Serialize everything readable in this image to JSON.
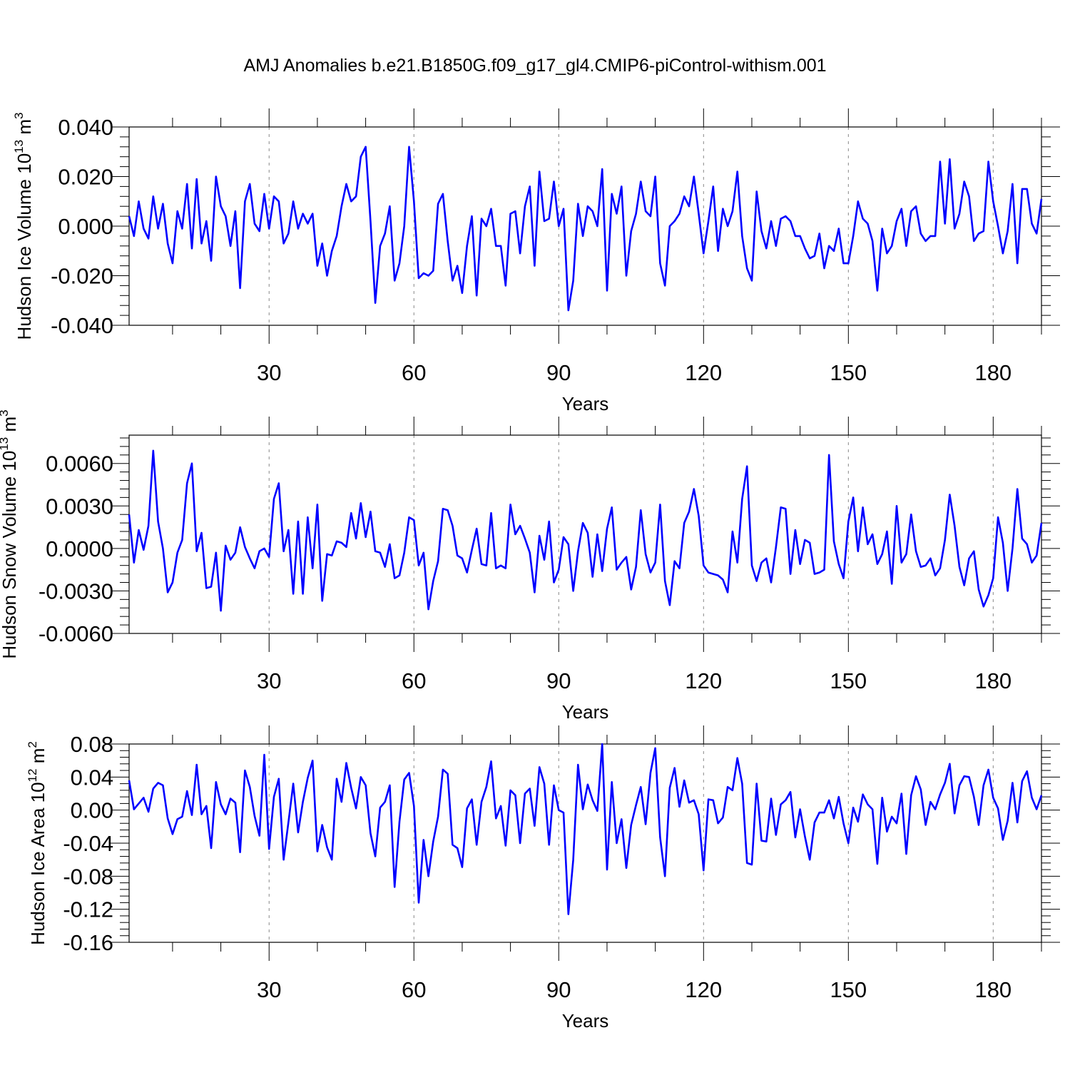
{
  "title": "AMJ Anomalies b.e21.B1850G.f09_g17_gl4.CMIP6-piControl-withism.001",
  "colors": {
    "series": "#0000ff",
    "axis": "#000000",
    "grid": "#888888"
  },
  "chart_data": [
    {
      "type": "line",
      "ylabel": {
        "main": "Hudson Ice Volume 10",
        "exp": "13",
        "unit": " m",
        "unit_exp": "3"
      },
      "xlabel": "Years",
      "xlim": [
        1,
        190
      ],
      "ylim": [
        -0.04,
        0.04
      ],
      "xticks": [
        30,
        60,
        90,
        120,
        150,
        180
      ],
      "xtick_labels": [
        "30",
        "60",
        "90",
        "120",
        "150",
        "180"
      ],
      "yticks": [
        -0.04,
        -0.02,
        0.0,
        0.02,
        0.04
      ],
      "ytick_labels": [
        "-0.040",
        "-0.020",
        "0.000",
        "0.020",
        "0.040"
      ],
      "x_start": 1,
      "series": [
        {
          "name": "Hudson Ice Volume",
          "values": [
            0.004,
            -0.004,
            0.01,
            -0.001,
            -0.005,
            0.012,
            -0.001,
            0.009,
            -0.007,
            -0.015,
            0.006,
            -0.001,
            0.017,
            -0.009,
            0.019,
            -0.007,
            0.002,
            -0.014,
            0.02,
            0.008,
            0.004,
            -0.008,
            0.006,
            -0.025,
            0.01,
            0.017,
            0.001,
            -0.002,
            0.013,
            -0.001,
            0.012,
            0.01,
            -0.007,
            -0.003,
            0.01,
            -0.001,
            0.005,
            0.001,
            0.005,
            -0.016,
            -0.007,
            -0.02,
            -0.01,
            -0.004,
            0.008,
            0.017,
            0.01,
            0.012,
            0.028,
            0.032,
            0.002,
            -0.031,
            -0.008,
            -0.003,
            0.008,
            -0.022,
            -0.015,
            0.0,
            0.032,
            0.01,
            -0.021,
            -0.019,
            -0.02,
            -0.018,
            0.009,
            0.013,
            -0.006,
            -0.022,
            -0.016,
            -0.027,
            -0.008,
            0.004,
            -0.028,
            0.003,
            0.0,
            0.007,
            -0.008,
            -0.008,
            -0.024,
            0.005,
            0.006,
            -0.011,
            0.008,
            0.016,
            -0.016,
            0.022,
            0.002,
            0.003,
            0.018,
            0.0,
            0.007,
            -0.034,
            -0.022,
            0.009,
            -0.004,
            0.008,
            0.006,
            0.0,
            0.023,
            -0.026,
            0.013,
            0.005,
            0.016,
            -0.02,
            -0.002,
            0.005,
            0.018,
            0.006,
            0.004,
            0.02,
            -0.015,
            -0.024,
            0.0,
            0.002,
            0.005,
            0.012,
            0.008,
            0.02,
            0.005,
            -0.011,
            0.002,
            0.016,
            -0.01,
            0.007,
            0.0,
            0.006,
            0.022,
            -0.004,
            -0.017,
            -0.022,
            0.014,
            -0.002,
            -0.009,
            0.002,
            -0.008,
            0.003,
            0.004,
            0.002,
            -0.004,
            -0.004,
            -0.009,
            -0.013,
            -0.012,
            -0.003,
            -0.017,
            -0.008,
            -0.01,
            -0.001,
            -0.015,
            -0.015,
            -0.004,
            0.01,
            0.003,
            0.001,
            -0.006,
            -0.026,
            -0.001,
            -0.011,
            -0.008,
            0.002,
            0.007,
            -0.008,
            0.006,
            0.008,
            -0.003,
            -0.006,
            -0.004,
            -0.004,
            0.026,
            0.001,
            0.027,
            -0.001,
            0.005,
            0.018,
            0.012,
            -0.006,
            -0.003,
            -0.002,
            0.026,
            0.01,
            0.0,
            -0.011,
            -0.002,
            0.017,
            -0.015,
            0.015,
            0.015,
            0.001,
            -0.003,
            0.011
          ]
        }
      ]
    },
    {
      "type": "line",
      "ylabel": {
        "main": "Hudson Snow Volume 10",
        "exp": "13",
        "unit": " m",
        "unit_exp": "3"
      },
      "xlabel": "Years",
      "xlim": [
        1,
        190
      ],
      "ylim": [
        -0.006,
        0.008
      ],
      "xticks": [
        30,
        60,
        90,
        120,
        150,
        180
      ],
      "xtick_labels": [
        "30",
        "60",
        "90",
        "120",
        "150",
        "180"
      ],
      "yticks": [
        -0.006,
        -0.003,
        0.0,
        0.003,
        0.006
      ],
      "ytick_labels": [
        "-0.0060",
        "-0.0030",
        "0.0000",
        "0.0030",
        "0.0060"
      ],
      "x_start": 1,
      "series": [
        {
          "name": "Hudson Snow Volume",
          "values": [
            0.0024,
            -0.001,
            0.0013,
            -0.0001,
            0.0016,
            0.0069,
            0.0019,
            0.0,
            -0.0031,
            -0.0024,
            -0.0003,
            0.0006,
            0.0046,
            0.006,
            -0.0002,
            0.0011,
            -0.0028,
            -0.0027,
            -0.0003,
            -0.0044,
            0.0002,
            -0.0008,
            -0.0003,
            0.0015,
            0.0001,
            -0.0007,
            -0.0014,
            -0.0002,
            0.0,
            -0.0006,
            0.0035,
            0.0046,
            -0.0002,
            0.0013,
            -0.0032,
            0.0019,
            -0.0032,
            0.0022,
            -0.0014,
            0.0031,
            -0.0037,
            -0.0004,
            -0.0005,
            0.0005,
            0.0004,
            0.0001,
            0.0025,
            0.0007,
            0.0032,
            0.0008,
            0.0026,
            -0.0002,
            -0.0003,
            -0.0013,
            0.0003,
            -0.0021,
            -0.0019,
            -0.0003,
            0.0022,
            0.002,
            -0.0012,
            -0.0003,
            -0.0043,
            -0.0023,
            -0.0009,
            0.0028,
            0.0027,
            0.0016,
            -0.0005,
            -0.0007,
            -0.0017,
            -0.0001,
            0.0014,
            -0.0011,
            -0.0012,
            0.0025,
            -0.0014,
            -0.0012,
            -0.0014,
            0.0031,
            0.001,
            0.0016,
            0.0007,
            -0.0003,
            -0.0031,
            0.0009,
            -0.0008,
            0.0019,
            -0.0024,
            -0.0015,
            0.0008,
            0.0003,
            -0.003,
            -0.0002,
            0.0018,
            0.0011,
            -0.002,
            0.001,
            -0.0016,
            0.0014,
            0.0029,
            -0.0015,
            -0.001,
            -0.0006,
            -0.0029,
            -0.0013,
            0.0027,
            -0.0004,
            -0.0017,
            -0.001,
            0.0031,
            -0.0023,
            -0.004,
            -0.0009,
            -0.0014,
            0.0018,
            0.0026,
            0.0042,
            0.0023,
            -0.0012,
            -0.0017,
            -0.0018,
            -0.0019,
            -0.0022,
            -0.0031,
            0.0012,
            -0.001,
            0.0035,
            0.0058,
            -0.0012,
            -0.0023,
            -0.001,
            -0.0007,
            -0.0024,
            0.0001,
            0.0029,
            0.0028,
            -0.0018,
            0.0013,
            -0.0011,
            0.0006,
            0.0004,
            -0.0018,
            -0.0017,
            -0.0015,
            0.0066,
            0.0005,
            -0.0011,
            -0.0021,
            0.0019,
            0.0036,
            -0.0002,
            0.0029,
            0.0003,
            0.001,
            -0.0011,
            -0.0004,
            0.0012,
            -0.0025,
            0.003,
            -0.001,
            -0.0004,
            0.0024,
            -0.0002,
            -0.0013,
            -0.0012,
            -0.0007,
            -0.0019,
            -0.0014,
            0.0006,
            0.0038,
            0.0016,
            -0.0013,
            -0.0026,
            -0.0007,
            -0.0002,
            -0.0029,
            -0.0041,
            -0.0033,
            -0.0021,
            0.0022,
            0.0004,
            -0.003,
            0.0,
            0.0042,
            0.0007,
            0.0003,
            -0.001,
            -0.0005,
            0.0018
          ]
        }
      ]
    },
    {
      "type": "line",
      "ylabel": {
        "main": "Hudson Ice Area 10",
        "exp": "12",
        "unit": " m",
        "unit_exp": "2"
      },
      "xlabel": "Years",
      "xlim": [
        1,
        190
      ],
      "ylim": [
        -0.16,
        0.08
      ],
      "xticks": [
        30,
        60,
        90,
        120,
        150,
        180
      ],
      "xtick_labels": [
        "30",
        "60",
        "90",
        "120",
        "150",
        "180"
      ],
      "yticks": [
        -0.16,
        -0.12,
        -0.08,
        -0.04,
        0.0,
        0.04,
        0.08
      ],
      "ytick_labels": [
        "-0.16",
        "-0.12",
        "-0.08",
        "-0.04",
        "0.00",
        "0.04",
        "0.08"
      ],
      "x_start": 1,
      "series": [
        {
          "name": "Hudson Ice Area",
          "values": [
            0.036,
            0.001,
            0.008,
            0.015,
            -0.002,
            0.026,
            0.033,
            0.03,
            -0.01,
            -0.029,
            -0.011,
            -0.008,
            0.023,
            -0.006,
            0.055,
            -0.005,
            0.005,
            -0.046,
            0.034,
            0.007,
            -0.005,
            0.014,
            0.009,
            -0.051,
            0.048,
            0.028,
            -0.007,
            -0.031,
            0.067,
            -0.047,
            0.016,
            0.038,
            -0.06,
            -0.015,
            0.032,
            -0.027,
            0.01,
            0.039,
            0.06,
            -0.05,
            -0.018,
            -0.045,
            -0.06,
            0.038,
            0.01,
            0.057,
            0.027,
            0.002,
            0.04,
            0.03,
            -0.028,
            -0.056,
            0.003,
            0.01,
            0.03,
            -0.093,
            -0.014,
            0.037,
            0.045,
            0.005,
            -0.112,
            -0.036,
            -0.08,
            -0.038,
            -0.008,
            0.049,
            0.044,
            -0.042,
            -0.046,
            -0.069,
            0.002,
            0.013,
            -0.042,
            0.01,
            0.028,
            0.059,
            -0.01,
            0.005,
            -0.043,
            0.024,
            0.018,
            -0.04,
            0.02,
            0.026,
            -0.019,
            0.052,
            0.032,
            -0.042,
            0.03,
            0.0,
            -0.003,
            -0.126,
            -0.06,
            0.055,
            0.001,
            0.031,
            0.012,
            -0.001,
            0.08,
            -0.072,
            0.034,
            -0.04,
            -0.011,
            -0.07,
            -0.018,
            0.006,
            0.028,
            -0.017,
            0.045,
            0.075,
            -0.033,
            -0.08,
            0.027,
            0.051,
            0.004,
            0.036,
            0.009,
            0.012,
            -0.005,
            -0.073,
            0.013,
            0.012,
            -0.016,
            -0.009,
            0.028,
            0.024,
            0.063,
            0.032,
            -0.064,
            -0.066,
            0.032,
            -0.037,
            -0.038,
            0.014,
            -0.03,
            0.007,
            0.012,
            0.022,
            -0.033,
            0.001,
            -0.032,
            -0.06,
            -0.015,
            -0.003,
            -0.003,
            0.012,
            -0.01,
            0.016,
            -0.016,
            -0.04,
            0.003,
            -0.014,
            0.019,
            0.007,
            0.001,
            -0.065,
            0.015,
            -0.026,
            -0.008,
            -0.016,
            0.02,
            -0.053,
            0.018,
            0.041,
            0.025,
            -0.018,
            0.01,
            0.001,
            0.019,
            0.033,
            0.056,
            -0.004,
            0.03,
            0.041,
            0.04,
            0.016,
            -0.018,
            0.03,
            0.049,
            0.015,
            0.002,
            -0.036,
            -0.013,
            0.033,
            -0.015,
            0.035,
            0.047,
            0.015,
            0.001,
            0.018
          ]
        }
      ]
    }
  ]
}
